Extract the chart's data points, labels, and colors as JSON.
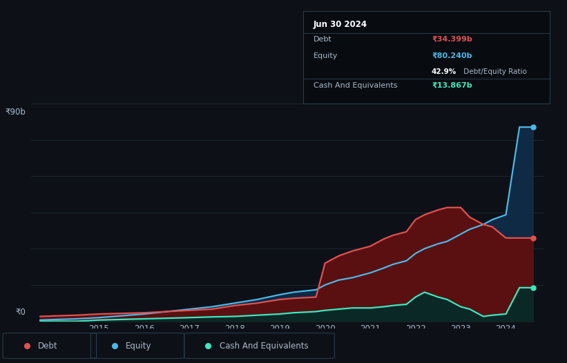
{
  "background_color": "#0d1117",
  "chart_bg": "#0d1117",
  "grid_color": "#1e2836",
  "text_color": "#aabbcc",
  "title_color": "#ffffff",
  "ylabel_text": "₹90b",
  "y0_text": "₹0",
  "ylim": [
    0,
    90
  ],
  "xlim": [
    2013.5,
    2024.85
  ],
  "xtick_labels": [
    "2015",
    "2016",
    "2017",
    "2018",
    "2019",
    "2020",
    "2021",
    "2022",
    "2023",
    "2024"
  ],
  "xtick_values": [
    2015,
    2016,
    2017,
    2018,
    2019,
    2020,
    2021,
    2022,
    2023,
    2024
  ],
  "debt_color": "#e05252",
  "equity_color": "#4db8e8",
  "cash_color": "#3de8c0",
  "debt_fill_color": "#5a1010",
  "equity_fill_color": "#0f2a45",
  "cash_fill_color": "#0a2825",
  "years": [
    2013.7,
    2014.0,
    2014.5,
    2015.0,
    2016.0,
    2017.0,
    2017.5,
    2018.0,
    2018.5,
    2019.0,
    2019.3,
    2019.8,
    2020.0,
    2020.3,
    2020.6,
    2021.0,
    2021.3,
    2021.5,
    2021.8,
    2022.0,
    2022.2,
    2022.5,
    2022.7,
    2023.0,
    2023.2,
    2023.5,
    2023.7,
    2024.0,
    2024.3,
    2024.6
  ],
  "debt": [
    2.0,
    2.2,
    2.5,
    3.0,
    3.5,
    4.5,
    5.0,
    6.5,
    7.5,
    9.0,
    9.5,
    10.0,
    24.0,
    27.0,
    29.0,
    31.0,
    34.0,
    35.5,
    37.0,
    42.0,
    44.0,
    46.0,
    47.0,
    47.0,
    43.0,
    40.0,
    39.0,
    34.4,
    34.4,
    34.4
  ],
  "equity": [
    0.5,
    0.7,
    1.0,
    1.5,
    3.0,
    5.0,
    6.0,
    7.5,
    9.0,
    11.0,
    12.0,
    13.0,
    15.0,
    17.0,
    18.0,
    20.0,
    22.0,
    23.5,
    25.0,
    28.0,
    30.0,
    32.0,
    33.0,
    36.0,
    38.0,
    40.0,
    42.0,
    44.0,
    80.24,
    80.24
  ],
  "cash": [
    0.0,
    0.0,
    0.0,
    0.5,
    1.0,
    1.5,
    1.8,
    2.0,
    2.5,
    3.0,
    3.5,
    4.0,
    4.5,
    5.0,
    5.5,
    5.5,
    6.0,
    6.5,
    7.0,
    10.0,
    12.0,
    10.0,
    9.0,
    6.0,
    5.0,
    2.0,
    2.5,
    3.0,
    13.87,
    13.87
  ],
  "tooltip": {
    "date": "Jun 30 2024",
    "debt_label": "Debt",
    "debt_value": "₹34.399b",
    "debt_value_color": "#e05252",
    "equity_label": "Equity",
    "equity_value": "₹80.240b",
    "equity_value_color": "#4db8e8",
    "ratio_text": "42.9%",
    "ratio_suffix": " Debt/Equity Ratio",
    "ratio_value_color": "#ffffff",
    "cash_label": "Cash And Equivalents",
    "cash_value": "₹13.867b",
    "cash_value_color": "#3de8c0",
    "box_bg": "#080c10",
    "box_border": "#2a3a4a"
  },
  "legend": [
    {
      "label": "Debt",
      "color": "#e05252"
    },
    {
      "label": "Equity",
      "color": "#4db8e8"
    },
    {
      "label": "Cash And Equivalents",
      "color": "#3de8c0"
    }
  ],
  "dot_end_year": 2024.6,
  "dot_debt_y": 34.4,
  "dot_equity_y": 80.24,
  "dot_cash_y": 13.87
}
